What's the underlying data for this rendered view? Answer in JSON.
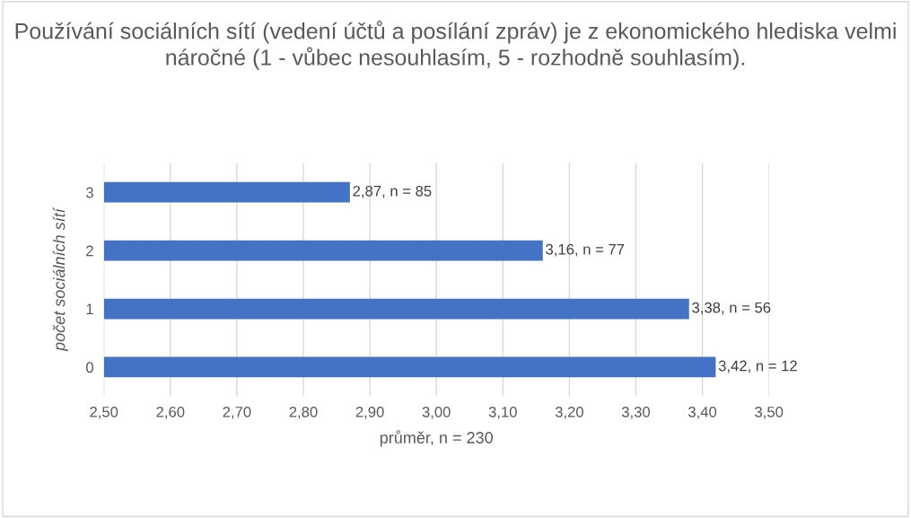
{
  "chart_data": {
    "type": "bar",
    "orientation": "horizontal",
    "title": "Používání sociálních sítí (vedení účtů a posílání zpráv) je z ekonomického hlediska velmi náročné (1 - vůbec nesouhlasím, 5 - rozhodně souhlasím).",
    "xlabel": "průměr, n = 230",
    "ylabel": "počet sociálních sítí",
    "categories": [
      "3",
      "2",
      "1",
      "0"
    ],
    "values": [
      2.87,
      3.16,
      3.38,
      3.42
    ],
    "value_labels": [
      "2,87, n = 85",
      "3,16, n = 77",
      "3,38, n = 56",
      "3,42, n = 12"
    ],
    "color": "#4472c4",
    "xlim": [
      2.5,
      3.5
    ],
    "xticks": [
      {
        "value": 2.5,
        "label": "2,50"
      },
      {
        "value": 2.6,
        "label": "2,60"
      },
      {
        "value": 2.7,
        "label": "2,70"
      },
      {
        "value": 2.8,
        "label": "2,80"
      },
      {
        "value": 2.9,
        "label": "2,90"
      },
      {
        "value": 3.0,
        "label": "3,00"
      },
      {
        "value": 3.1,
        "label": "3,10"
      },
      {
        "value": 3.2,
        "label": "3,20"
      },
      {
        "value": 3.3,
        "label": "3,30"
      },
      {
        "value": 3.4,
        "label": "3,40"
      },
      {
        "value": 3.5,
        "label": "3,50"
      }
    ],
    "grid": "x",
    "legend": false
  }
}
